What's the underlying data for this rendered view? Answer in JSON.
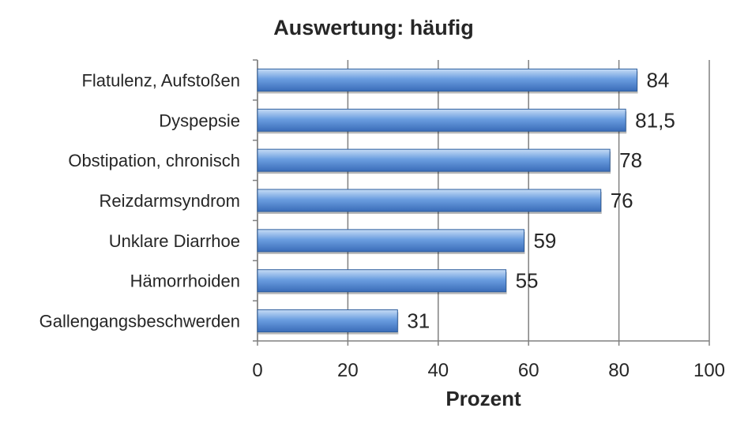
{
  "chart_data": {
    "type": "bar",
    "orientation": "horizontal",
    "title": "Auswertung: häufig",
    "xlabel": "Prozent",
    "ylabel": "",
    "xlim": [
      0,
      100
    ],
    "xticks": [
      0,
      20,
      40,
      60,
      80,
      100
    ],
    "xtick_labels": [
      "0",
      "20",
      "40",
      "60",
      "80",
      "100"
    ],
    "categories": [
      "Flatulenz, Aufstoßen",
      "Dyspepsie",
      "Obstipation, chronisch",
      "Reizdarmsyndrom",
      "Unklare Diarrhoe",
      "Hämorrhoiden",
      "Gallengangsbeschwerden"
    ],
    "values": [
      84,
      81.5,
      78,
      76,
      59,
      55,
      31
    ],
    "data_labels": [
      "84",
      "81,5",
      "78",
      "76",
      "59",
      "55",
      "31"
    ],
    "grid": "vertical",
    "legend": "none",
    "colors": {
      "bar_light": "#c6dcf5",
      "bar_mid": "#6b9ee0",
      "bar_dark": "#3a6cb8",
      "grid": "#808080"
    }
  }
}
